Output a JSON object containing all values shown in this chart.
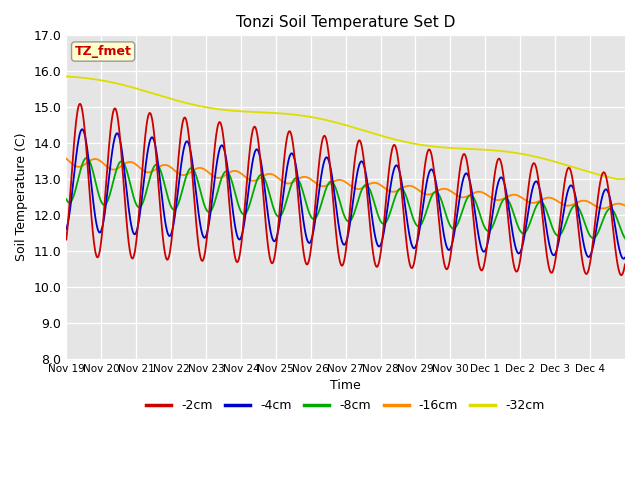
{
  "title": "Tonzi Soil Temperature Set D",
  "xlabel": "Time",
  "ylabel": "Soil Temperature (C)",
  "ylim": [
    8.0,
    17.0
  ],
  "yticks": [
    8.0,
    9.0,
    10.0,
    11.0,
    12.0,
    13.0,
    14.0,
    15.0,
    16.0,
    17.0
  ],
  "legend_label": "TZ_fmet",
  "line_colors": {
    "-2cm": "#cc0000",
    "-4cm": "#0000cc",
    "-8cm": "#00aa00",
    "-16cm": "#ff8800",
    "-32cm": "#dddd00"
  },
  "bg_color": "#e5e5e5",
  "tick_dates": [
    "Nov 19",
    "Nov 20",
    "Nov 21",
    "Nov 22",
    "Nov 23",
    "Nov 24",
    "Nov 25",
    "Nov 26",
    "Nov 27",
    "Nov 28",
    "Nov 29",
    "Nov 30",
    "Dec 1",
    "Dec 2",
    "Dec 3",
    "Dec 4"
  ],
  "n_points": 1600
}
